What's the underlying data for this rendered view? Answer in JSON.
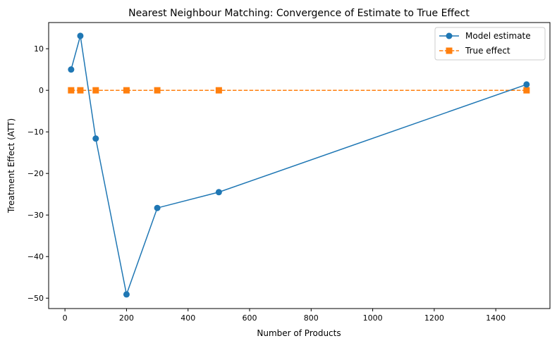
{
  "chart_data": {
    "type": "line",
    "title": "Nearest Neighbour Matching: Convergence of Estimate to True Effect",
    "xlabel": "Number of Products",
    "ylabel": "Treatment Effect (ATT)",
    "xlim": [
      -53,
      1576
    ],
    "ylim": [
      -52.5,
      16.3
    ],
    "xticks": [
      0,
      200,
      400,
      600,
      800,
      1000,
      1200,
      1400
    ],
    "yticks": [
      10,
      0,
      -10,
      -20,
      -30,
      -40,
      -50
    ],
    "ytick_labels": [
      "10",
      "0",
      "−10",
      "−20",
      "−30",
      "−40",
      "−50"
    ],
    "grid": false,
    "legend_position": "top-right",
    "x": [
      20,
      50,
      100,
      200,
      300,
      500,
      1500
    ],
    "series": [
      {
        "name": "Model estimate",
        "values": [
          5.0,
          13.1,
          -11.6,
          -49.1,
          -28.3,
          -24.5,
          1.4
        ],
        "color": "#1f77b4",
        "marker": "circle",
        "linestyle": "solid"
      },
      {
        "name": "True effect",
        "values": [
          0,
          0,
          0,
          0,
          0,
          0,
          0
        ],
        "color": "#ff7f0e",
        "marker": "square",
        "linestyle": "dashed"
      }
    ]
  }
}
